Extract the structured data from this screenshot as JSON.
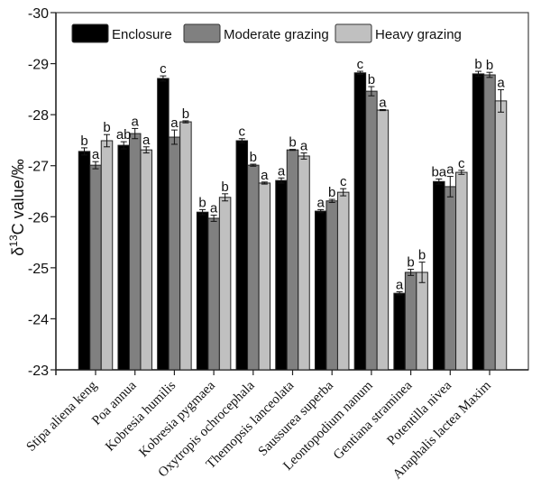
{
  "chart_data": {
    "type": "bar",
    "title": "",
    "xlabel": "",
    "ylabel": "δ13C value/‰",
    "ylabel_parts": {
      "delta": "δ",
      "sup": "13",
      "rest": "C value/‰"
    },
    "ylim": [
      -23,
      -30
    ],
    "y_inverted": true,
    "yticks": [
      -30,
      -29,
      -28,
      -27,
      -26,
      -25,
      -24,
      -23
    ],
    "grid": false,
    "legend_position": "top",
    "categories": [
      "Stipa aliena keng",
      "Poa annua",
      "Kobresia humilis",
      "Kobresia pygmaea",
      "Oxytropis ochrocephala",
      "Themopsis lanceolata",
      "Saussurea superba",
      "Leontopodium nanum",
      "Gentiana straminea",
      "Potentilla nivea",
      "Anaphalis lactea Maxim"
    ],
    "series": [
      {
        "name": "Enclosure",
        "color": "#000000",
        "values": [
          -27.28,
          -27.4,
          -28.71,
          -26.09,
          -27.49,
          -26.71,
          -26.11,
          -28.82,
          -24.5,
          -26.69,
          -28.8
        ],
        "errors": [
          0.07,
          0.07,
          0.05,
          0.05,
          0.04,
          0.05,
          0.03,
          0.03,
          0.03,
          0.05,
          0.05
        ],
        "letters": [
          "b",
          "ab",
          "c",
          "b",
          "c",
          "a",
          "a",
          "c",
          "a",
          "ba",
          "b"
        ]
      },
      {
        "name": "Moderate grazing",
        "color": "#808080",
        "values": [
          -27.01,
          -27.63,
          -27.56,
          -25.97,
          -27.01,
          -27.31,
          -26.31,
          -28.46,
          -24.91,
          -26.59,
          -28.78
        ],
        "errors": [
          0.07,
          0.1,
          0.14,
          0.06,
          0.02,
          0.01,
          0.03,
          0.09,
          0.06,
          0.2,
          0.05
        ],
        "letters": [
          "a",
          "a",
          "a",
          "a",
          "b",
          "b",
          "b",
          "b",
          "b",
          "a",
          "b"
        ]
      },
      {
        "name": "Heavy grazing",
        "color": "#c0c0c0",
        "values": [
          -27.49,
          -27.31,
          -27.86,
          -26.38,
          -26.66,
          -27.19,
          -26.48,
          -28.09,
          -24.91,
          -26.87,
          -28.27
        ],
        "errors": [
          0.12,
          0.06,
          0.02,
          0.07,
          0.02,
          0.06,
          0.07,
          0.01,
          0.2,
          0.04,
          0.22
        ],
        "letters": [
          "b",
          "a",
          "b",
          "b",
          "a",
          "a",
          "c",
          "a",
          "b",
          "c",
          "a"
        ]
      }
    ]
  }
}
